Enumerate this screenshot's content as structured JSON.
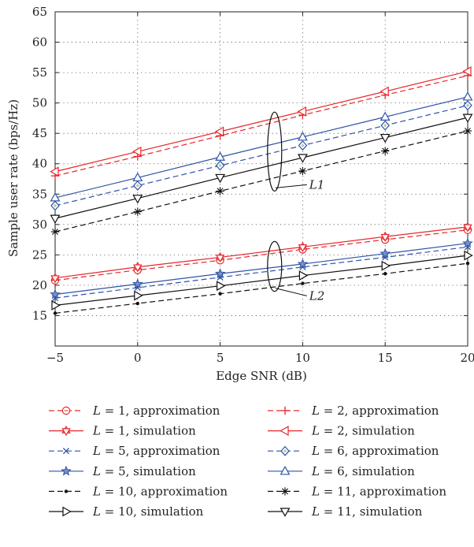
{
  "chart_data": {
    "type": "line",
    "title": "",
    "xlabel": "Edge SNR (dB)",
    "ylabel": "Sample user rate (bps/Hz)",
    "xlim": [
      -5,
      20
    ],
    "ylim": [
      10,
      65
    ],
    "xticks": [
      -5,
      0,
      5,
      10,
      15,
      20
    ],
    "xtick_labels": [
      "−5",
      "0",
      "5",
      "10",
      "15",
      "20"
    ],
    "yticks": [
      15,
      20,
      25,
      30,
      35,
      40,
      45,
      50,
      55,
      60,
      65
    ],
    "grid": true,
    "legend_position": "bottom",
    "x": [
      -5,
      0,
      5,
      10,
      15,
      20
    ],
    "series": [
      {
        "name": "L = 1, approximation",
        "name_var": "L",
        "name_rest": " = 1, approximation",
        "color": "#e8262b",
        "dash": "dash",
        "marker": "circle",
        "values": [
          20.8,
          22.5,
          24.1,
          25.9,
          27.5,
          29.1
        ]
      },
      {
        "name": "L = 2, approximation",
        "name_var": "L",
        "name_rest": " = 2, approximation",
        "color": "#e8262b",
        "dash": "dash",
        "marker": "plus",
        "values": [
          38.0,
          41.2,
          44.6,
          48.0,
          51.3,
          54.5
        ]
      },
      {
        "name": "L = 1, simulation",
        "name_var": "L",
        "name_rest": " = 1, simulation",
        "color": "#e8262b",
        "dash": "solid",
        "marker": "hexstar",
        "values": [
          21.2,
          23.0,
          24.6,
          26.3,
          28.0,
          29.6
        ]
      },
      {
        "name": "L = 2, simulation",
        "name_var": "L",
        "name_rest": " = 2, simulation",
        "color": "#e8262b",
        "dash": "solid",
        "marker": "triangle-left",
        "values": [
          38.7,
          42.0,
          45.3,
          48.6,
          51.9,
          55.2
        ]
      },
      {
        "name": "L = 5, approximation",
        "name_var": "L",
        "name_rest": " = 5, approximation",
        "color": "#2f54a5",
        "dash": "dash",
        "marker": "x",
        "values": [
          17.9,
          19.6,
          21.3,
          23.0,
          24.6,
          26.3
        ]
      },
      {
        "name": "L = 6, approximation",
        "name_var": "L",
        "name_rest": " = 6, approximation",
        "color": "#2f54a5",
        "dash": "dash",
        "marker": "diamond",
        "values": [
          33.1,
          36.4,
          39.7,
          43.0,
          46.3,
          49.6
        ]
      },
      {
        "name": "L = 5, simulation",
        "name_var": "L",
        "name_rest": " = 5, simulation",
        "color": "#2f54a5",
        "dash": "solid",
        "marker": "star",
        "values": [
          18.5,
          20.2,
          21.9,
          23.5,
          25.2,
          26.9
        ]
      },
      {
        "name": "L = 6, simulation",
        "name_var": "L",
        "name_rest": " = 6, simulation",
        "color": "#2f54a5",
        "dash": "solid",
        "marker": "triangle-up",
        "values": [
          34.4,
          37.7,
          41.1,
          44.4,
          47.7,
          51.0
        ]
      },
      {
        "name": "L = 10, approximation",
        "name_var": "L",
        "name_rest": " = 10, approximation",
        "color": "#111111",
        "dash": "dash",
        "marker": "dot",
        "values": [
          15.4,
          17.0,
          18.6,
          20.3,
          21.9,
          23.6
        ]
      },
      {
        "name": "L = 11, approximation",
        "name_var": "L",
        "name_rest": " = 11, approximation",
        "color": "#111111",
        "dash": "dash",
        "marker": "asterisk",
        "values": [
          28.8,
          32.1,
          35.5,
          38.8,
          42.1,
          45.4
        ]
      },
      {
        "name": "L = 10, simulation",
        "name_var": "L",
        "name_rest": " = 10, simulation",
        "color": "#111111",
        "dash": "solid",
        "marker": "triangle-right",
        "values": [
          16.7,
          18.3,
          19.9,
          21.6,
          23.2,
          24.9
        ]
      },
      {
        "name": "L = 11, simulation",
        "name_var": "L",
        "name_rest": " = 11, simulation",
        "color": "#111111",
        "dash": "solid",
        "marker": "triangle-down",
        "values": [
          31.0,
          34.3,
          37.7,
          41.0,
          44.3,
          47.6
        ]
      }
    ],
    "annotations": [
      {
        "text": "L1",
        "ellipse_x": 8.3,
        "ellipse_y_range": [
          35.5,
          48.5
        ],
        "label_x": 10.4,
        "label_y": 35.9
      },
      {
        "text": "L2",
        "ellipse_x": 8.3,
        "ellipse_y_range": [
          19.0,
          27.2
        ],
        "label_x": 10.4,
        "label_y": 17.6
      }
    ]
  }
}
